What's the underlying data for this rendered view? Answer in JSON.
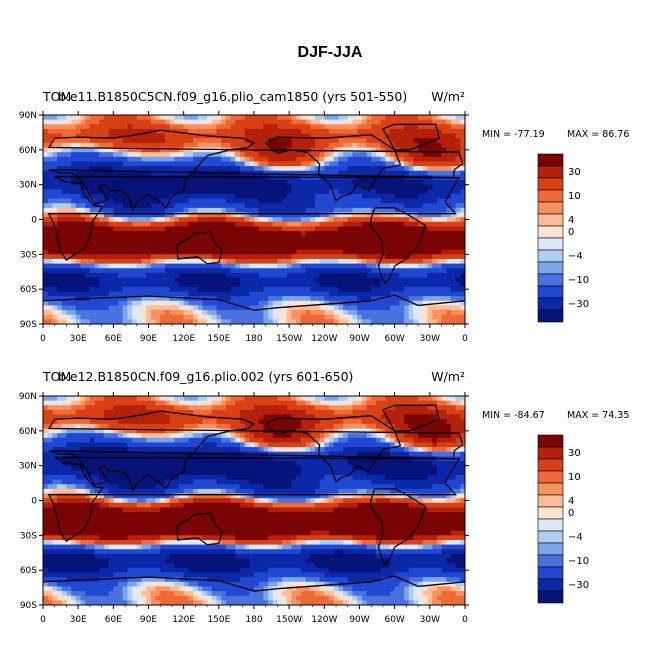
{
  "title": "DJF-JJA",
  "chart_data": [
    {
      "type": "heatmap",
      "title_left": "TOM",
      "title_left_overlay": "b.e11.B1850C5CN.f09_g16.plio_cam1850 (yrs 501-550)",
      "units": "W/m²",
      "min_label": "MIN = -77.19",
      "max_label": "MAX =  86.76",
      "lat_ticks": [
        "90N",
        "60N",
        "30N",
        "0",
        "30S",
        "60S",
        "90S"
      ],
      "lon_ticks": [
        "0",
        "30E",
        "60E",
        "90E",
        "120E",
        "150E",
        "180",
        "150W",
        "120W",
        "90W",
        "60W",
        "30W",
        "0"
      ],
      "colorbar_labels": [
        "30",
        "10",
        "4",
        "0",
        "-4",
        "-10",
        "-30"
      ],
      "amplitude": 1.0
    },
    {
      "type": "heatmap",
      "title_left": "TOM",
      "title_left_overlay": "b.e12.B1850CN.f09_g16.plio.002 (yrs 601-650)",
      "units": "W/m²",
      "min_label": "MIN = -84.67",
      "max_label": "MAX =  74.35",
      "lat_ticks": [
        "90N",
        "60N",
        "30N",
        "0",
        "30S",
        "60S",
        "90S"
      ],
      "lon_ticks": [
        "0",
        "30E",
        "60E",
        "90E",
        "120E",
        "150E",
        "180",
        "150W",
        "120W",
        "90W",
        "60W",
        "30W",
        "0"
      ],
      "colorbar_labels": [
        "30",
        "10",
        "4",
        "0",
        "-4",
        "-10",
        "-30"
      ],
      "amplitude": 1.1
    }
  ],
  "colors": {
    "levels": [
      "#7a0403",
      "#b5200b",
      "#d94014",
      "#ef6a36",
      "#f7925e",
      "#fbbd98",
      "#fde3cf",
      "#dde9f8",
      "#aecdf1",
      "#7aa5ea",
      "#4a72df",
      "#2048d2",
      "#0a28a8",
      "#061378"
    ],
    "coast": "#000000"
  }
}
